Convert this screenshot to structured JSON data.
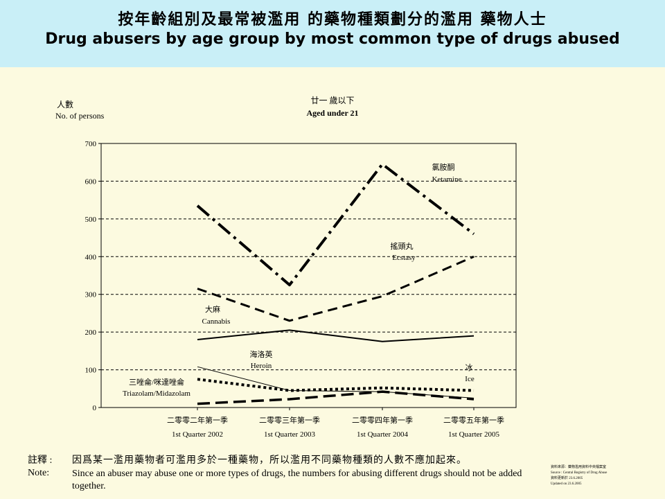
{
  "header": {
    "title_zh": "按年齡組別及最常被濫用 的藥物種類劃分的濫用 藥物人士",
    "title_en": "Drug abusers by age group by most common type of drugs abused"
  },
  "chart_data": {
    "type": "line",
    "title_zh": "廿一 歲以下",
    "title": "Aged under 21",
    "ylabel_zh": "人數",
    "ylabel": "No. of persons",
    "ylim": [
      0,
      700
    ],
    "yticks": [
      "0",
      "100",
      "200",
      "300",
      "400",
      "500",
      "600",
      "700"
    ],
    "categories_zh": [
      "二零零二年第一季",
      "二零零三年第一季",
      "二零零四年第一季",
      "二零零五年第一季"
    ],
    "categories": [
      "1st Quarter 2002",
      "1st Quarter 2003",
      "1st Quarter 2004",
      "1st Quarter 2005"
    ],
    "grid": "horizontal dashed",
    "series": [
      {
        "name_zh": "氯胺酮",
        "name": "Ketamine",
        "values": [
          535,
          325,
          645,
          460
        ]
      },
      {
        "name_zh": "搖頭丸",
        "name": "Ecstasy",
        "values": [
          315,
          230,
          295,
          400
        ]
      },
      {
        "name_zh": "大麻",
        "name": "Cannabis",
        "values": [
          180,
          205,
          175,
          190
        ]
      },
      {
        "name_zh": "海洛英",
        "name": "Heroin",
        "values": [
          108,
          45,
          42,
          25
        ]
      },
      {
        "name_zh": "三唑侖/咪達唑侖",
        "name": "Triazolam/Midazolam",
        "values": [
          75,
          45,
          52,
          45
        ]
      },
      {
        "name_zh": "冰",
        "name": "Ice",
        "values": [
          10,
          22,
          42,
          22
        ]
      }
    ]
  },
  "note": {
    "label_zh": "註釋 :",
    "text_zh": "因爲某一濫用藥物者可濫用多於一種藥物，所以濫用不同藥物種類的人數不應加起來。",
    "label_en": "Note:",
    "text_en": "Since an abuser may abuse one or more types of drugs, the numbers for abusing different drugs should not be added together."
  },
  "source": {
    "line1_zh": "資料來源：藥物濫用資料中央檔案室",
    "line2": "Source : Central Registry of Drug Abuse",
    "line3_zh": "資料更新於 23.6.2005",
    "line4": "Updated on 23.6.2005"
  }
}
